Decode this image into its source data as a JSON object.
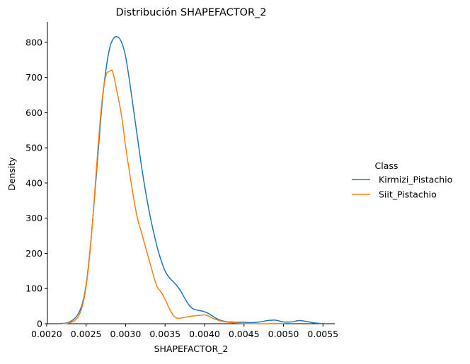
{
  "chart_data": {
    "type": "line",
    "title": "Distribución SHAPEFACTOR_2",
    "xlabel": "SHAPEFACTOR_2",
    "ylabel": "Density",
    "xlim": [
      0.00201,
      0.00565
    ],
    "ylim": [
      0,
      858
    ],
    "x_ticks": [
      0.002,
      0.0025,
      0.003,
      0.0035,
      0.004,
      0.0045,
      0.005,
      0.0055
    ],
    "x_tick_labels": [
      "0.0020",
      "0.0025",
      "0.0030",
      "0.0035",
      "0.0040",
      "0.0045",
      "0.0050",
      "0.0055"
    ],
    "y_ticks": [
      0,
      100,
      200,
      300,
      400,
      500,
      600,
      700,
      800
    ],
    "y_tick_labels": [
      "0",
      "100",
      "200",
      "300",
      "400",
      "500",
      "600",
      "700",
      "800"
    ],
    "grid": false,
    "legend": {
      "title": "Class",
      "placement": "right-outside"
    },
    "series": [
      {
        "name": "Kirmizi_Pistachio",
        "color": "#1f77b4",
        "x": [
          0.00215,
          0.0022,
          0.00225,
          0.0023,
          0.00235,
          0.0024,
          0.00245,
          0.0025,
          0.00255,
          0.0026,
          0.00265,
          0.0027,
          0.00275,
          0.0028,
          0.00285,
          0.0029,
          0.00295,
          0.003,
          0.00305,
          0.0031,
          0.00315,
          0.0032,
          0.00325,
          0.0033,
          0.00335,
          0.0034,
          0.00345,
          0.0035,
          0.00355,
          0.0036,
          0.00365,
          0.0037,
          0.00375,
          0.0038,
          0.00385,
          0.0039,
          0.00395,
          0.004,
          0.00405,
          0.0041,
          0.00415,
          0.0042,
          0.00425,
          0.0043,
          0.00435,
          0.0044,
          0.0045,
          0.0046,
          0.0047,
          0.0048,
          0.0049,
          0.005,
          0.0051,
          0.0052,
          0.0053,
          0.0054,
          0.00553
        ],
        "y": [
          0,
          1,
          2,
          6,
          14,
          28,
          55,
          110,
          210,
          340,
          480,
          620,
          720,
          785,
          812,
          815,
          800,
          760,
          690,
          610,
          530,
          450,
          380,
          318,
          265,
          218,
          180,
          150,
          132,
          120,
          108,
          92,
          72,
          54,
          43,
          39,
          37,
          34,
          29,
          22,
          15,
          10,
          7,
          5,
          5,
          4,
          4,
          3,
          5,
          9,
          10,
          5,
          5,
          9,
          6,
          2,
          0
        ]
      },
      {
        "name": "Siit_Pistachio",
        "color": "#ff7f0e",
        "x": [
          0.0022,
          0.00225,
          0.0023,
          0.00235,
          0.0024,
          0.00245,
          0.0025,
          0.00255,
          0.0026,
          0.00265,
          0.0027,
          0.00275,
          0.0028,
          0.00283,
          0.00285,
          0.0029,
          0.00295,
          0.003,
          0.00305,
          0.0031,
          0.00315,
          0.0032,
          0.00325,
          0.0033,
          0.00335,
          0.0034,
          0.00345,
          0.0035,
          0.00355,
          0.0036,
          0.00365,
          0.0037,
          0.00375,
          0.0038,
          0.00385,
          0.0039,
          0.00395,
          0.004,
          0.00405,
          0.0041,
          0.0042,
          0.0043,
          0.0044,
          0.0045,
          0.0046,
          0.0047,
          0.0048,
          0.0049,
          0.005
        ],
        "y": [
          0,
          1,
          3,
          8,
          20,
          48,
          105,
          205,
          345,
          500,
          630,
          705,
          718,
          720,
          705,
          650,
          590,
          505,
          430,
          360,
          300,
          260,
          220,
          180,
          140,
          105,
          90,
          70,
          45,
          25,
          16,
          16,
          18,
          20,
          22,
          23,
          24,
          25,
          22,
          16,
          8,
          4,
          2,
          1,
          0,
          0,
          0,
          1,
          0
        ]
      }
    ]
  }
}
